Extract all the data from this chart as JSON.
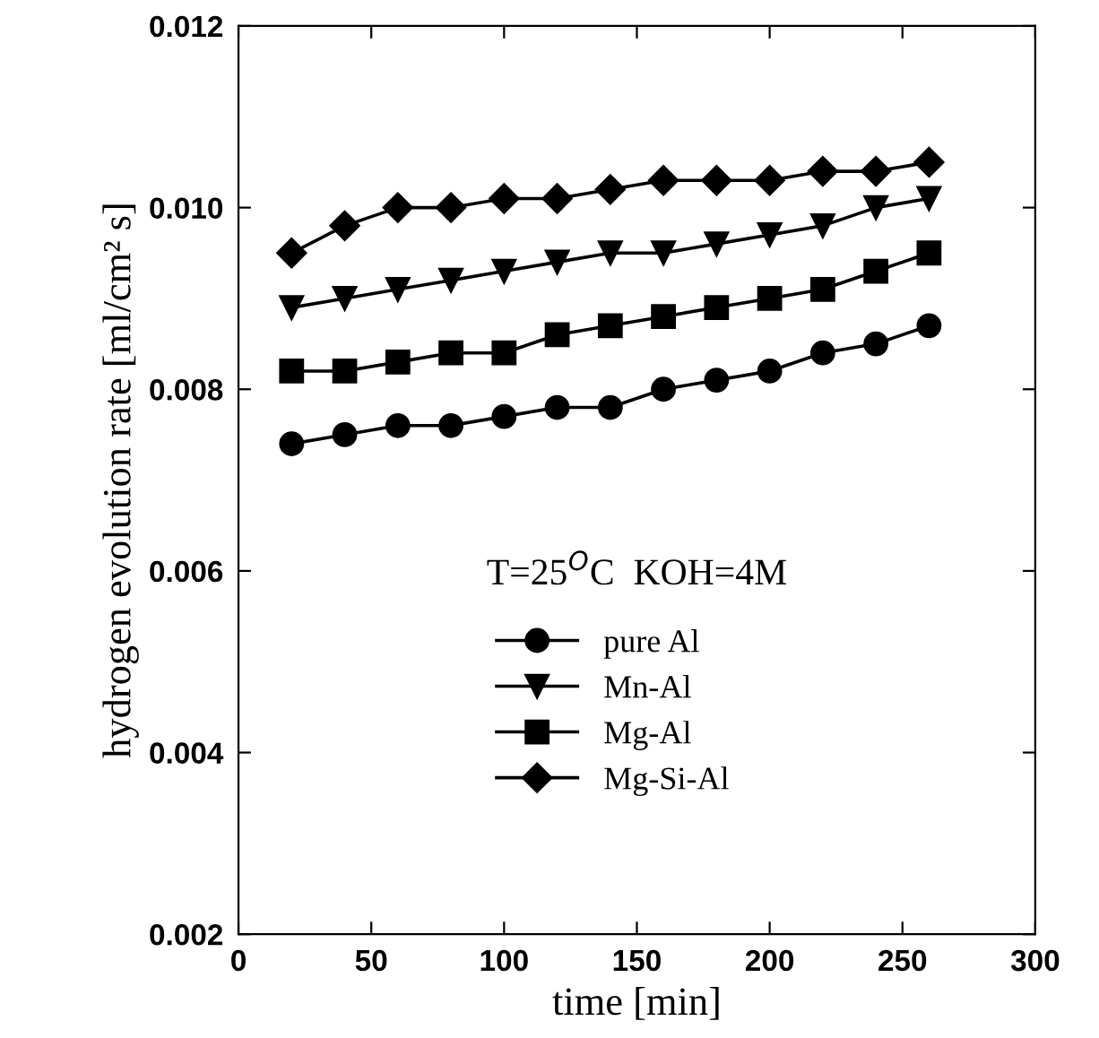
{
  "chart_data": {
    "type": "line",
    "xlabel": "time [min]",
    "ylabel": "hydrogen evolution rate [ml/cm² s]",
    "annotations": [
      "T=25$^{O}$C  KOH=4M"
    ],
    "x": [
      20,
      40,
      60,
      80,
      100,
      120,
      140,
      160,
      180,
      200,
      220,
      240,
      260
    ],
    "series": [
      {
        "name": "pure Al",
        "color": "#000000",
        "marker": "circle",
        "values": [
          0.0074,
          0.0075,
          0.0076,
          0.0076,
          0.0077,
          0.0078,
          0.0078,
          0.008,
          0.0081,
          0.0082,
          0.0084,
          0.0085,
          0.0087
        ]
      },
      {
        "name": "Mn-Al",
        "color": "#000000",
        "marker": "triangle",
        "values": [
          0.0089,
          0.009,
          0.0091,
          0.0092,
          0.0093,
          0.0094,
          0.0095,
          0.0095,
          0.0096,
          0.0097,
          0.0098,
          0.01,
          0.0101
        ]
      },
      {
        "name": "Mg-Al",
        "color": "#000000",
        "marker": "square",
        "values": [
          0.0082,
          0.0082,
          0.0083,
          0.0084,
          0.0084,
          0.0086,
          0.0087,
          0.0088,
          0.0089,
          0.009,
          0.0091,
          0.0093,
          0.0095
        ]
      },
      {
        "name": "Mg-Si-Al",
        "color": "#000000",
        "marker": "diamond",
        "values": [
          0.0095,
          0.0098,
          0.01,
          0.01,
          0.0101,
          0.0101,
          0.0102,
          0.0103,
          0.0103,
          0.0103,
          0.0104,
          0.0104,
          0.0105
        ]
      }
    ],
    "xlim": [
      0,
      300
    ],
    "xticks": [
      0,
      50,
      100,
      150,
      200,
      250,
      300
    ],
    "ylim": [
      0.002,
      0.012
    ],
    "yticks": [
      {
        "value": 0.002,
        "label": "0.002"
      },
      {
        "value": 0.004,
        "label": "0.004"
      },
      {
        "value": 0.006,
        "label": "0.006"
      },
      {
        "value": 0.008,
        "label": "0.008"
      },
      {
        "value": 0.01,
        "label": "0.010"
      },
      {
        "value": 0.012,
        "label": "0.012"
      }
    ],
    "grid": false,
    "legend": "bottom",
    "line_style": "solid"
  }
}
